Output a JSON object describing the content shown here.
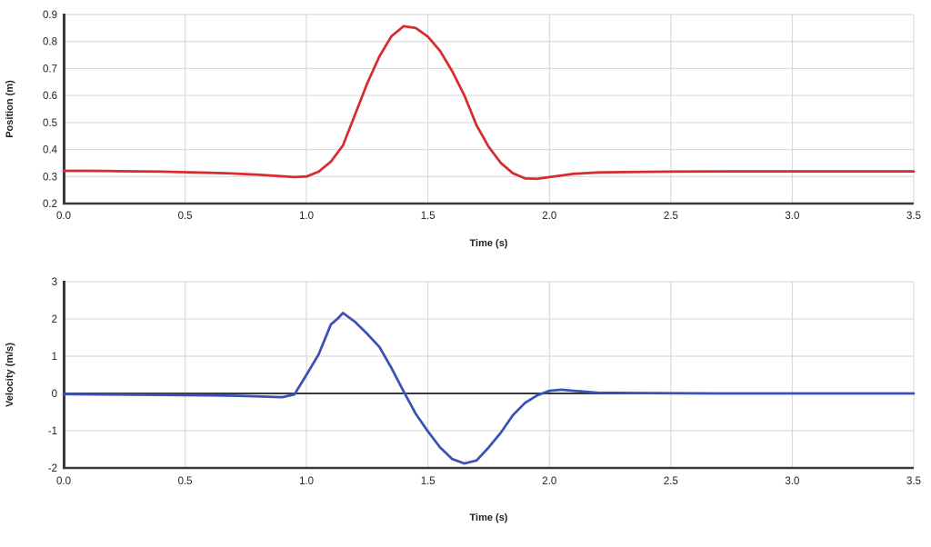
{
  "figure": {
    "background": "#ffffff"
  },
  "chart_data": [
    {
      "type": "line",
      "title": "",
      "xlabel": "Time (s)",
      "ylabel": "Position (m)",
      "xlim": [
        0.0,
        3.5
      ],
      "ylim": [
        0.2,
        0.9
      ],
      "xticks": [
        0.0,
        0.5,
        1.0,
        1.5,
        2.0,
        2.5,
        3.0,
        3.5
      ],
      "xtick_labels": [
        "0.0",
        "0.5",
        "1.0",
        "1.5",
        "2.0",
        "2.5",
        "3.0",
        "3.5"
      ],
      "yticks": [
        0.2,
        0.3,
        0.4,
        0.5,
        0.6,
        0.7,
        0.8,
        0.9
      ],
      "ytick_labels": [
        "0.2",
        "0.3",
        "0.4",
        "0.5",
        "0.6",
        "0.7",
        "0.8",
        "0.9"
      ],
      "grid": true,
      "legend": "none",
      "zero_line": false,
      "colors": {
        "line": "#d62c2e",
        "grid": "#d6d6d6",
        "axis": "#3a3a3a",
        "text": "#222222"
      },
      "series": [
        {
          "name": "position",
          "points": [
            [
              0.0,
              0.321
            ],
            [
              0.1,
              0.321
            ],
            [
              0.2,
              0.32
            ],
            [
              0.3,
              0.319
            ],
            [
              0.4,
              0.318
            ],
            [
              0.5,
              0.316
            ],
            [
              0.6,
              0.314
            ],
            [
              0.7,
              0.311
            ],
            [
              0.8,
              0.307
            ],
            [
              0.9,
              0.301
            ],
            [
              0.95,
              0.298
            ],
            [
              1.0,
              0.3
            ],
            [
              1.05,
              0.318
            ],
            [
              1.1,
              0.355
            ],
            [
              1.15,
              0.415
            ],
            [
              1.2,
              0.53
            ],
            [
              1.25,
              0.645
            ],
            [
              1.3,
              0.745
            ],
            [
              1.35,
              0.82
            ],
            [
              1.4,
              0.857
            ],
            [
              1.45,
              0.85
            ],
            [
              1.5,
              0.818
            ],
            [
              1.55,
              0.765
            ],
            [
              1.6,
              0.69
            ],
            [
              1.65,
              0.6
            ],
            [
              1.7,
              0.49
            ],
            [
              1.75,
              0.41
            ],
            [
              1.8,
              0.35
            ],
            [
              1.85,
              0.312
            ],
            [
              1.9,
              0.293
            ],
            [
              1.95,
              0.292
            ],
            [
              2.0,
              0.298
            ],
            [
              2.05,
              0.304
            ],
            [
              2.1,
              0.31
            ],
            [
              2.2,
              0.315
            ],
            [
              2.35,
              0.317
            ],
            [
              2.5,
              0.318
            ],
            [
              2.75,
              0.319
            ],
            [
              3.0,
              0.319
            ],
            [
              3.25,
              0.319
            ],
            [
              3.5,
              0.319
            ]
          ]
        }
      ]
    },
    {
      "type": "line",
      "title": "",
      "xlabel": "Time (s)",
      "ylabel": "Velocity (m/s)",
      "xlim": [
        0.0,
        3.5
      ],
      "ylim": [
        -2,
        3
      ],
      "xticks": [
        0.0,
        0.5,
        1.0,
        1.5,
        2.0,
        2.5,
        3.0,
        3.5
      ],
      "xtick_labels": [
        "0.0",
        "0.5",
        "1.0",
        "1.5",
        "2.0",
        "2.5",
        "3.0",
        "3.5"
      ],
      "yticks": [
        -2,
        -1,
        0,
        1,
        2,
        3
      ],
      "ytick_labels": [
        "-2",
        "-1",
        "0",
        "1",
        "2",
        "3"
      ],
      "grid": true,
      "legend": "none",
      "zero_line": true,
      "colors": {
        "line": "#3c51b5",
        "grid": "#d6d6d6",
        "axis": "#3a3a3a",
        "text": "#222222"
      },
      "series": [
        {
          "name": "velocity",
          "points": [
            [
              0.0,
              -0.02
            ],
            [
              0.2,
              -0.03
            ],
            [
              0.4,
              -0.04
            ],
            [
              0.6,
              -0.05
            ],
            [
              0.7,
              -0.06
            ],
            [
              0.8,
              -0.08
            ],
            [
              0.9,
              -0.1
            ],
            [
              0.95,
              -0.03
            ],
            [
              1.0,
              0.5
            ],
            [
              1.05,
              1.05
            ],
            [
              1.1,
              1.85
            ],
            [
              1.13,
              2.02
            ],
            [
              1.15,
              2.16
            ],
            [
              1.2,
              1.92
            ],
            [
              1.25,
              1.6
            ],
            [
              1.3,
              1.25
            ],
            [
              1.35,
              0.68
            ],
            [
              1.4,
              0.05
            ],
            [
              1.45,
              -0.55
            ],
            [
              1.5,
              -1.02
            ],
            [
              1.55,
              -1.45
            ],
            [
              1.6,
              -1.76
            ],
            [
              1.65,
              -1.88
            ],
            [
              1.7,
              -1.8
            ],
            [
              1.75,
              -1.45
            ],
            [
              1.8,
              -1.05
            ],
            [
              1.85,
              -0.58
            ],
            [
              1.9,
              -0.25
            ],
            [
              1.95,
              -0.05
            ],
            [
              2.0,
              0.07
            ],
            [
              2.05,
              0.1
            ],
            [
              2.1,
              0.07
            ],
            [
              2.2,
              0.02
            ],
            [
              2.4,
              0.01
            ],
            [
              2.7,
              0.0
            ],
            [
              3.0,
              0.0
            ],
            [
              3.5,
              0.0
            ]
          ]
        }
      ]
    }
  ]
}
